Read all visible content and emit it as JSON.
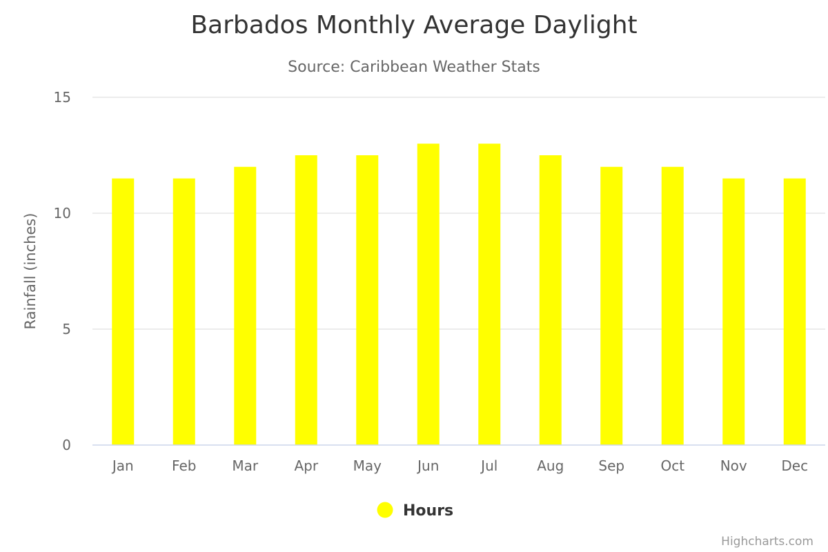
{
  "chart_data": {
    "type": "bar",
    "title": "Barbados Monthly Average Daylight",
    "subtitle": "Source: Caribbean Weather Stats",
    "xlabel": "",
    "ylabel": "Rainfall (inches)",
    "ylim": [
      0,
      15
    ],
    "yticks": [
      "0",
      "5",
      "10",
      "15"
    ],
    "categories": [
      "Jan",
      "Feb",
      "Mar",
      "Apr",
      "May",
      "Jun",
      "Jul",
      "Aug",
      "Sep",
      "Oct",
      "Nov",
      "Dec"
    ],
    "series": [
      {
        "name": "Hours",
        "color": "#ffff00",
        "values": [
          11.5,
          11.5,
          12.0,
          12.5,
          12.5,
          13.0,
          13.0,
          12.5,
          12.0,
          12.0,
          11.5,
          11.5
        ]
      }
    ],
    "grid": true,
    "legend_position": "bottom-center"
  },
  "credits": "Highcharts.com"
}
